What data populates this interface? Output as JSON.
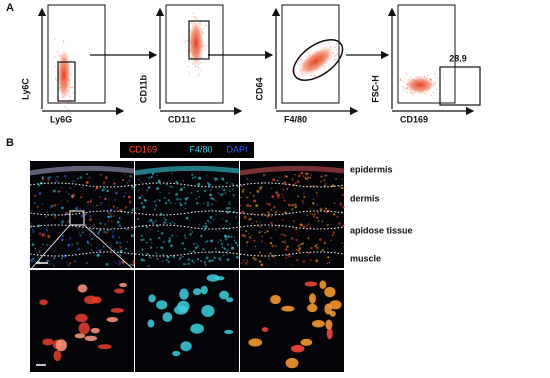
{
  "panel_a": {
    "label": "A",
    "plots": [
      {
        "y_label": "Ly6C",
        "x_label": "Ly6G"
      },
      {
        "y_label": "CD11b",
        "x_label": "CD11c"
      },
      {
        "y_label": "CD64",
        "x_label": "F4/80"
      },
      {
        "y_label": "FSC-H",
        "x_label": "CD169"
      }
    ],
    "gate_value": 28.9
  },
  "panel_b": {
    "label": "B",
    "stains": [
      "CD169",
      "F4/80",
      "DAPI"
    ],
    "regions": [
      "epidermis",
      "dermis",
      "apidose tissue",
      "muscle"
    ]
  }
}
